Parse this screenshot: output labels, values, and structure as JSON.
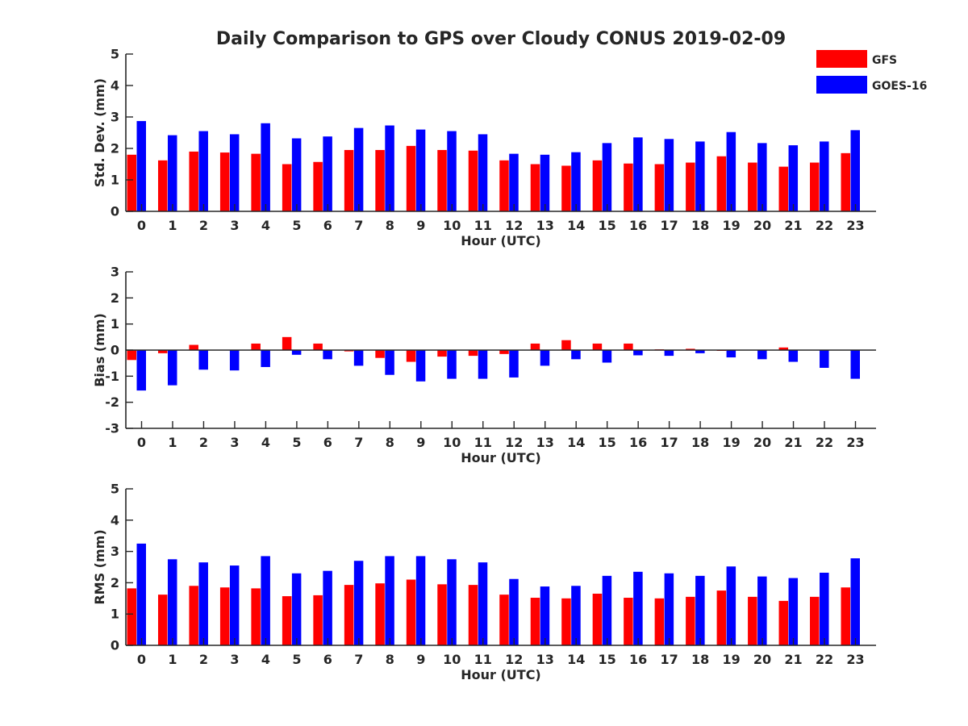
{
  "figure": {
    "title": "Daily Comparison to GPS over Cloudy CONUS 2019-02-09",
    "legend": {
      "placement": "top-right",
      "entries": [
        {
          "name": "GFS",
          "color": "#ff0000"
        },
        {
          "name": "GOES-16",
          "color": "#0000ff"
        }
      ]
    }
  },
  "chart_data": [
    {
      "type": "bar",
      "xlabel": "Hour (UTC)",
      "ylabel": "Std. Dev. (mm)",
      "ylim": [
        0,
        5
      ],
      "yticks": [
        0,
        1,
        2,
        3,
        4,
        5
      ],
      "grid": false,
      "categories": [
        "0",
        "1",
        "2",
        "3",
        "4",
        "5",
        "6",
        "7",
        "8",
        "9",
        "10",
        "11",
        "12",
        "13",
        "14",
        "15",
        "16",
        "17",
        "18",
        "19",
        "20",
        "21",
        "22",
        "23"
      ],
      "series": [
        {
          "name": "GFS",
          "color": "#ff0000",
          "values": [
            1.8,
            1.62,
            1.9,
            1.87,
            1.83,
            1.5,
            1.57,
            1.95,
            1.95,
            2.08,
            1.95,
            1.93,
            1.62,
            1.5,
            1.45,
            1.62,
            1.52,
            1.5,
            1.55,
            1.75,
            1.55,
            1.42,
            1.55,
            1.85
          ]
        },
        {
          "name": "GOES-16",
          "color": "#0000ff",
          "values": [
            2.87,
            2.42,
            2.55,
            2.45,
            2.8,
            2.32,
            2.38,
            2.65,
            2.73,
            2.6,
            2.55,
            2.45,
            1.83,
            1.8,
            1.88,
            2.17,
            2.35,
            2.3,
            2.22,
            2.52,
            2.17,
            2.1,
            2.22,
            2.58
          ]
        }
      ]
    },
    {
      "type": "bar",
      "xlabel": "Hour (UTC)",
      "ylabel": "Bias (mm)",
      "ylim": [
        -3,
        3
      ],
      "yticks": [
        -3,
        -2,
        -1,
        0,
        1,
        2,
        3
      ],
      "grid": false,
      "zero_line": true,
      "categories": [
        "0",
        "1",
        "2",
        "3",
        "4",
        "5",
        "6",
        "7",
        "8",
        "9",
        "10",
        "11",
        "12",
        "13",
        "14",
        "15",
        "16",
        "17",
        "18",
        "19",
        "20",
        "21",
        "22",
        "23"
      ],
      "series": [
        {
          "name": "GFS",
          "color": "#ff0000",
          "values": [
            -0.38,
            -0.12,
            0.2,
            0.0,
            0.25,
            0.5,
            0.25,
            -0.05,
            -0.3,
            -0.45,
            -0.25,
            -0.22,
            -0.15,
            0.25,
            0.38,
            0.25,
            0.25,
            0.03,
            0.05,
            -0.03,
            0.0,
            0.1,
            0.0,
            0.0
          ]
        },
        {
          "name": "GOES-16",
          "color": "#0000ff",
          "values": [
            -1.55,
            -1.35,
            -0.75,
            -0.78,
            -0.65,
            -0.18,
            -0.35,
            -0.6,
            -0.95,
            -1.2,
            -1.1,
            -1.1,
            -1.05,
            -0.6,
            -0.35,
            -0.48,
            -0.2,
            -0.22,
            -0.12,
            -0.28,
            -0.35,
            -0.45,
            -0.68,
            -1.1
          ]
        }
      ]
    },
    {
      "type": "bar",
      "xlabel": "Hour (UTC)",
      "ylabel": "RMS (mm)",
      "ylim": [
        0,
        5
      ],
      "yticks": [
        0,
        1,
        2,
        3,
        4,
        5
      ],
      "grid": false,
      "categories": [
        "0",
        "1",
        "2",
        "3",
        "4",
        "5",
        "6",
        "7",
        "8",
        "9",
        "10",
        "11",
        "12",
        "13",
        "14",
        "15",
        "16",
        "17",
        "18",
        "19",
        "20",
        "21",
        "22",
        "23"
      ],
      "series": [
        {
          "name": "GFS",
          "color": "#ff0000",
          "values": [
            1.82,
            1.62,
            1.9,
            1.85,
            1.82,
            1.57,
            1.6,
            1.93,
            1.98,
            2.1,
            1.95,
            1.93,
            1.62,
            1.52,
            1.5,
            1.65,
            1.52,
            1.5,
            1.55,
            1.75,
            1.55,
            1.42,
            1.55,
            1.85
          ]
        },
        {
          "name": "GOES-16",
          "color": "#0000ff",
          "values": [
            3.25,
            2.75,
            2.65,
            2.55,
            2.85,
            2.3,
            2.38,
            2.7,
            2.85,
            2.85,
            2.75,
            2.65,
            2.12,
            1.88,
            1.9,
            2.22,
            2.35,
            2.3,
            2.22,
            2.52,
            2.2,
            2.15,
            2.32,
            2.78
          ]
        }
      ]
    }
  ]
}
